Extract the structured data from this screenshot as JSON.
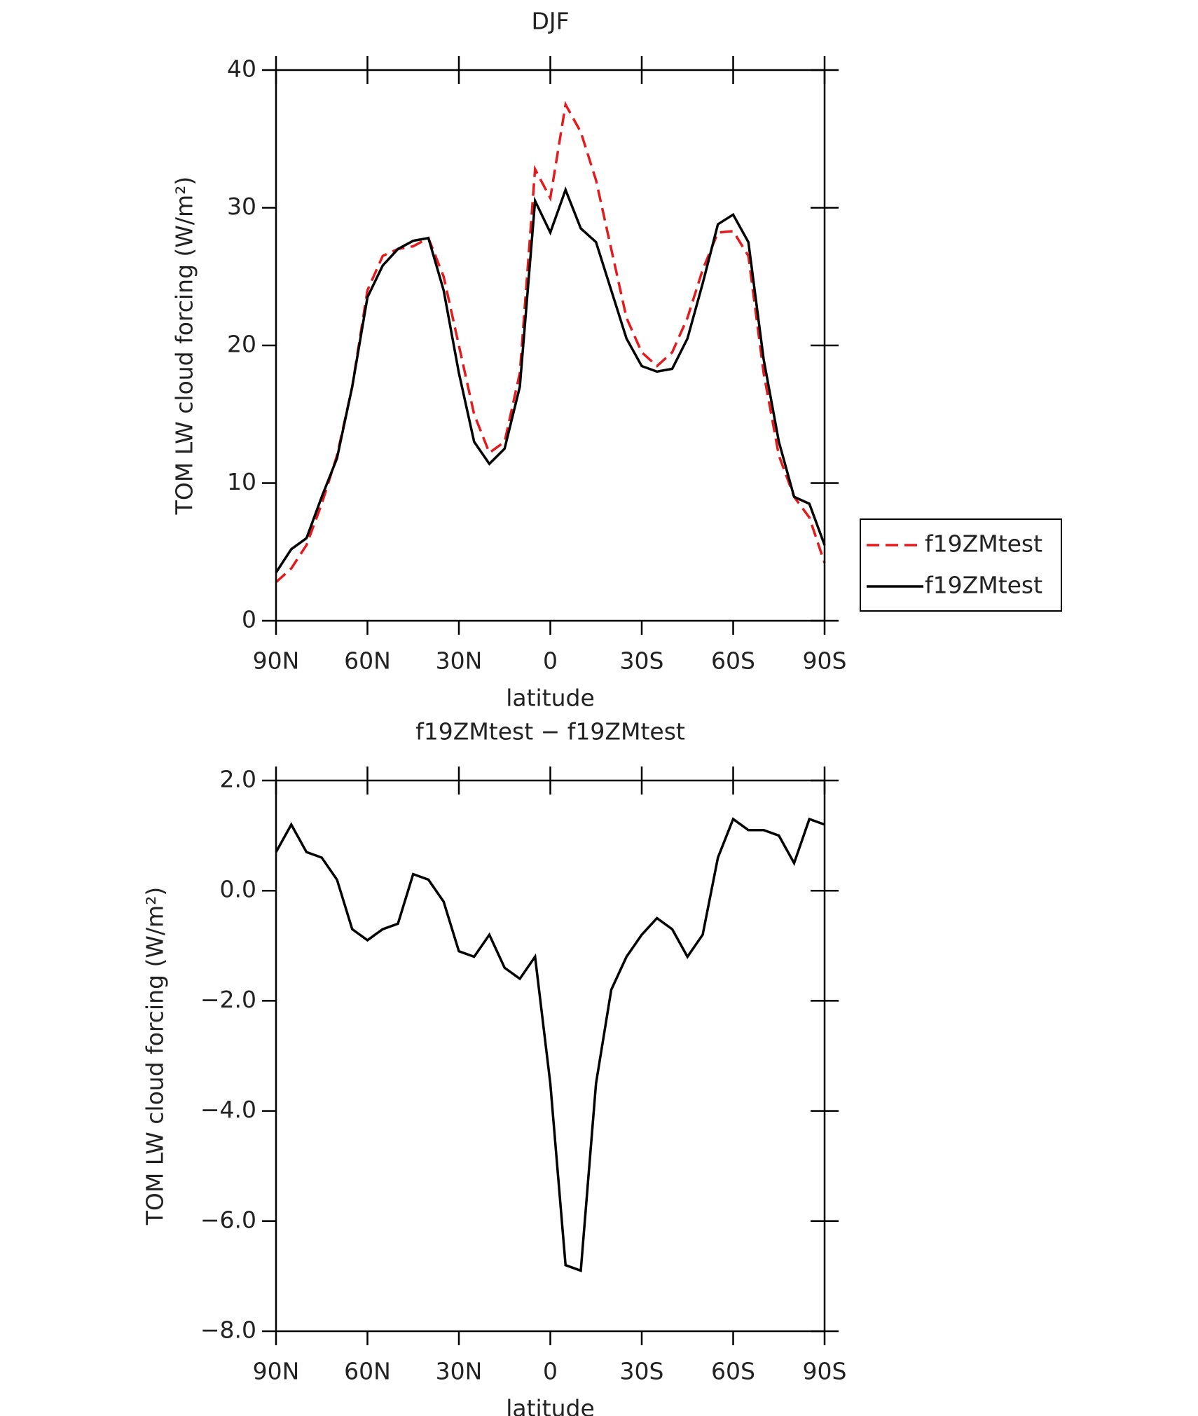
{
  "chart_data": [
    {
      "type": "line",
      "title": "DJF",
      "xlabel": "latitude",
      "ylabel": "TOM LW cloud forcing (W/m²)",
      "x": [
        90,
        85,
        80,
        75,
        70,
        65,
        60,
        55,
        50,
        45,
        40,
        35,
        30,
        25,
        20,
        15,
        10,
        5,
        0,
        -5,
        -10,
        -15,
        -20,
        -25,
        -30,
        -35,
        -40,
        -45,
        -50,
        -55,
        -60,
        -65,
        -70,
        -75,
        -80,
        -85,
        -90
      ],
      "series": [
        {
          "name": "f19ZMtest",
          "color": "#e41a1c",
          "dashed": true,
          "values": [
            2.8,
            3.8,
            5.5,
            8.5,
            12,
            17,
            24,
            26.5,
            27,
            27.2,
            27.8,
            25,
            20,
            15,
            12.2,
            13,
            18,
            32.8,
            30.7,
            37.5,
            35.5,
            32,
            27,
            22,
            19.5,
            18.5,
            19.5,
            22,
            25.5,
            28.2,
            28.3,
            26.5,
            18,
            12,
            9,
            7.5,
            4.2
          ]
        },
        {
          "name": "f19ZMtest",
          "color": "#000000",
          "dashed": false,
          "values": [
            3.5,
            5.2,
            6,
            9,
            11.8,
            17,
            23.5,
            25.8,
            27,
            27.6,
            27.8,
            24,
            18,
            13,
            11.4,
            12.5,
            17,
            30.5,
            28.2,
            31.3,
            28.5,
            27.5,
            24,
            20.5,
            18.5,
            18.1,
            18.3,
            20.5,
            24.5,
            28.8,
            29.5,
            27.5,
            19,
            13,
            9,
            8.5,
            5.5
          ]
        }
      ],
      "xlim": [
        90,
        -90
      ],
      "xticks": [
        {
          "value": 90,
          "label": "90N"
        },
        {
          "value": 60,
          "label": "60N"
        },
        {
          "value": 30,
          "label": "30N"
        },
        0,
        {
          "value": -30,
          "label": "30S"
        },
        {
          "value": -60,
          "label": "60S"
        },
        {
          "value": -90,
          "label": "90S"
        }
      ],
      "ylim": [
        0,
        40
      ],
      "yticks": [
        0,
        10,
        20,
        30,
        40
      ],
      "legend": "outside-right"
    },
    {
      "type": "line",
      "title": "f19ZMtest − f19ZMtest",
      "xlabel": "latitude",
      "ylabel": "TOM LW cloud forcing (W/m²)",
      "x": [
        90,
        85,
        80,
        75,
        70,
        65,
        60,
        55,
        50,
        45,
        40,
        35,
        30,
        25,
        20,
        15,
        10,
        5,
        0,
        -5,
        -10,
        -15,
        -20,
        -25,
        -30,
        -35,
        -40,
        -45,
        -50,
        -55,
        -60,
        -65,
        -70,
        -75,
        -80,
        -85,
        -90
      ],
      "color": "#000000",
      "values": [
        0.7,
        1.2,
        0.7,
        0.6,
        0.2,
        -0.7,
        -0.9,
        -0.7,
        -0.6,
        0.3,
        0.2,
        -0.2,
        -1.1,
        -1.2,
        -0.8,
        -1.4,
        -1.6,
        -1.2,
        -3.5,
        -6.8,
        -6.9,
        -3.5,
        -1.8,
        -1.2,
        -0.8,
        -0.5,
        -0.7,
        -1.2,
        -0.8,
        0.6,
        1.3,
        1.1,
        1.1,
        1.0,
        0.5,
        1.3,
        1.2
      ],
      "xlim": [
        90,
        -90
      ],
      "xticks": [
        {
          "value": 90,
          "label": "90N"
        },
        {
          "value": 60,
          "label": "60N"
        },
        {
          "value": 30,
          "label": "30N"
        },
        0,
        {
          "value": -30,
          "label": "30S"
        },
        {
          "value": -60,
          "label": "60S"
        },
        {
          "value": -90,
          "label": "90S"
        }
      ],
      "ylim": [
        -8,
        2
      ],
      "yticks": [
        {
          "value": -8,
          "label": "−8.0"
        },
        {
          "value": -6,
          "label": "−6.0"
        },
        {
          "value": -4,
          "label": "−4.0"
        },
        {
          "value": -2,
          "label": "−2.0"
        },
        {
          "value": 0,
          "label": "0.0"
        },
        {
          "value": 2,
          "label": "2.0"
        }
      ]
    }
  ]
}
